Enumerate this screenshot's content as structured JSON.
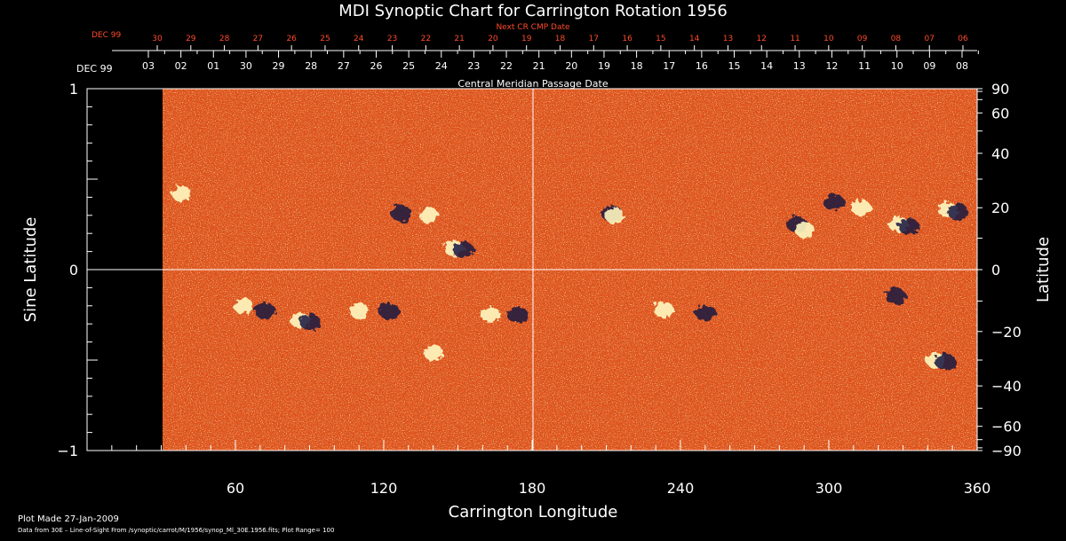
{
  "chart_data": {
    "type": "heatmap",
    "title": "MDI Synoptic Chart for Carrington Rotation 1956",
    "xlabel": "Carrington Longitude",
    "ylabel": "Sine Latitude",
    "right_axis_label": "Latitude",
    "xlim": [
      0,
      360
    ],
    "ylim": [
      -1,
      1
    ],
    "x_ticks": [
      "60",
      "120",
      "180",
      "240",
      "300",
      "360"
    ],
    "x_tick_values": [
      60,
      120,
      180,
      240,
      300,
      360
    ],
    "y_ticks": [
      "1",
      "0",
      "−1"
    ],
    "y_tick_values": [
      1,
      0,
      -1
    ],
    "right_ticks": [
      "90",
      "60",
      "40",
      "20",
      "0",
      "−20",
      "−40",
      "−60",
      "−90"
    ],
    "right_tick_values": [
      90,
      60,
      40,
      20,
      0,
      -20,
      -40,
      -60,
      -90
    ],
    "top_axis_title": "Central Meridian Passage Date",
    "top_month": "DEC 99",
    "top_dates": [
      "03",
      "02",
      "01",
      "30",
      "29",
      "28",
      "27",
      "26",
      "25",
      "24",
      "23",
      "22",
      "21",
      "20",
      "19",
      "18",
      "17",
      "16",
      "15",
      "14",
      "13",
      "12",
      "11",
      "10",
      "09",
      "08"
    ],
    "next_axis_title": "Next CR CMP Date",
    "next_month": "DEC 99",
    "next_dates": [
      "30",
      "29",
      "28",
      "27",
      "26",
      "25",
      "24",
      "23",
      "22",
      "21",
      "20",
      "19",
      "18",
      "17",
      "16",
      "15",
      "14",
      "13",
      "12",
      "11",
      "10",
      "09",
      "08",
      "07",
      "06"
    ],
    "data_start_longitude": 30,
    "background_color": "#e0501a",
    "positive_color": "#fff8c0",
    "negative_color": "#151540",
    "crosshair": {
      "longitude": 180,
      "sine_latitude": 0
    },
    "active_regions": [
      {
        "lon": 65,
        "sinlat": -0.2,
        "polarity": "positive"
      },
      {
        "lon": 70,
        "sinlat": -0.22,
        "polarity": "negative"
      },
      {
        "lon": 88,
        "sinlat": -0.28,
        "polarity": "mixed"
      },
      {
        "lon": 112,
        "sinlat": -0.23,
        "polarity": "positive"
      },
      {
        "lon": 120,
        "sinlat": -0.22,
        "polarity": "negative"
      },
      {
        "lon": 142,
        "sinlat": -0.46,
        "polarity": "positive"
      },
      {
        "lon": 165,
        "sinlat": -0.25,
        "polarity": "positive"
      },
      {
        "lon": 172,
        "sinlat": -0.24,
        "polarity": "negative"
      },
      {
        "lon": 235,
        "sinlat": -0.22,
        "polarity": "positive"
      },
      {
        "lon": 248,
        "sinlat": -0.23,
        "polarity": "negative"
      },
      {
        "lon": 325,
        "sinlat": -0.14,
        "polarity": "negative"
      },
      {
        "lon": 345,
        "sinlat": -0.5,
        "polarity": "mixed"
      },
      {
        "lon": 140,
        "sinlat": 0.3,
        "polarity": "positive"
      },
      {
        "lon": 150,
        "sinlat": 0.12,
        "polarity": "mixed"
      },
      {
        "lon": 125,
        "sinlat": 0.32,
        "polarity": "negative"
      },
      {
        "lon": 210,
        "sinlat": 0.32,
        "polarity": "negative"
      },
      {
        "lon": 215,
        "sinlat": 0.3,
        "polarity": "positive"
      },
      {
        "lon": 285,
        "sinlat": 0.26,
        "polarity": "negative"
      },
      {
        "lon": 292,
        "sinlat": 0.22,
        "polarity": "positive"
      },
      {
        "lon": 300,
        "sinlat": 0.38,
        "polarity": "negative"
      },
      {
        "lon": 315,
        "sinlat": 0.34,
        "polarity": "positive"
      },
      {
        "lon": 330,
        "sinlat": 0.25,
        "polarity": "mixed"
      },
      {
        "lon": 350,
        "sinlat": 0.33,
        "polarity": "mixed"
      },
      {
        "lon": 40,
        "sinlat": 0.42,
        "polarity": "positive"
      }
    ]
  },
  "footer": {
    "plot_made": "Plot Made 27-Jan-2009",
    "data_source": "Data from 30E – Line-of-Sight From /synoptic/carrot/M/1956/synop_Ml_30E.1956.fits; Plot Range= 100"
  }
}
